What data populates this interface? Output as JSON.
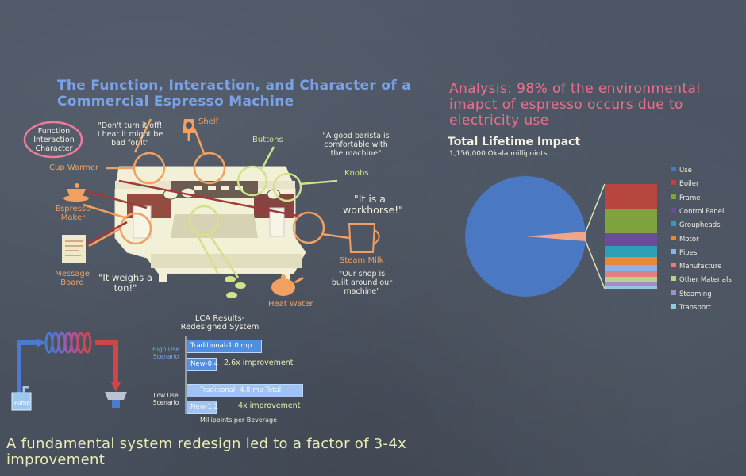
{
  "main_title": "The Function, Interaction, and Character of a Commercial Espresso Machine",
  "analysis_title": "Analysis: 98% of the environmental imapct of espresso occurs due to electricity use",
  "lifetime": {
    "title": "Total Lifetime Impact",
    "subtitle": "1,156,000  Okala millipoints"
  },
  "diagram": {
    "function_bubble": "Function\nInteraction\nCharacter",
    "labels": {
      "shelf": "Shelf",
      "buttons": "Buttons",
      "knobs": "Knobs",
      "cup_warmer": "Cup Warmer",
      "espresso_maker": "Espresso\nMaker",
      "message_board": "Message\nBoard",
      "steam_milk": "Steam Milk",
      "heat_water": "Heat Water"
    },
    "quotes": {
      "dont_turn_off": "\"Don't turn it off!\nI hear it might be\nbad for it\"",
      "good_barista": "\"A good barista is\ncomfortable with\nthe machine\"",
      "workhorse": "\"It is a\nworkhorse!\"",
      "weighs_ton": "\"It weighs a\nton!\"",
      "shop_built": "\"Our shop is\nbuilt around our\nmachine\""
    }
  },
  "lca": {
    "title": "LCA Results-\nRedesigned System",
    "high_label": "High Use\nScenario",
    "low_label": "Low Use\nScenario",
    "high_traditional": "Traditional-1.0 mp",
    "high_new": "New-0.4",
    "high_improvement": "2.6x improvement",
    "low_traditional": "Traditional- 4.8 mp-Total",
    "low_new": "New-1.2",
    "low_improvement": "4x improvement",
    "axis_label": "Millipoints per Beverage"
  },
  "pump_label": "Pump",
  "bottom_title": "A fundamental system redesign led to a factor of 3-4x improvement",
  "legend": [
    {
      "name": "Use",
      "color": "#4a78c2"
    },
    {
      "name": "Boiler",
      "color": "#b7463f"
    },
    {
      "name": "Frame",
      "color": "#7fa33e"
    },
    {
      "name": "Control Panel",
      "color": "#6a4d9a"
    },
    {
      "name": "Groupheads",
      "color": "#2f9fb8"
    },
    {
      "name": "Motor",
      "color": "#e58a3a"
    },
    {
      "name": "Pipes",
      "color": "#8fb1e6"
    },
    {
      "name": "Manufacture",
      "color": "#e27f84"
    },
    {
      "name": "Other Materials",
      "color": "#b9d08f"
    },
    {
      "name": "Steaming",
      "color": "#a08fc6"
    },
    {
      "name": "Transport",
      "color": "#93c8e0"
    }
  ]
}
